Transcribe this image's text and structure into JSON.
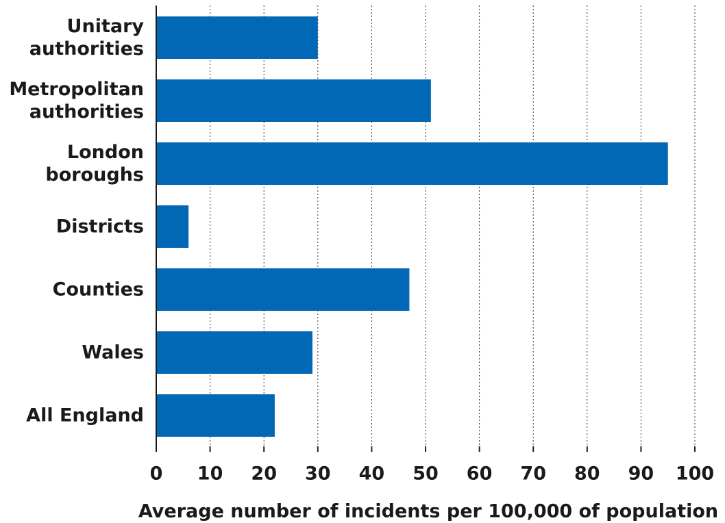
{
  "chart_data": {
    "type": "barh",
    "xlabel": "Average number of incidents per 100,000 of population",
    "categories": [
      "Unitary authorities",
      "Metropolitan authorities",
      "London boroughs",
      "Districts",
      "Counties",
      "Wales",
      "All England"
    ],
    "values": [
      30,
      51,
      95,
      6,
      47,
      29,
      22
    ],
    "color": "#0068b5",
    "xlim": [
      0,
      100
    ],
    "xticks": [
      0,
      10,
      20,
      30,
      40,
      50,
      60,
      70,
      80,
      90,
      100
    ],
    "grid": true
  }
}
